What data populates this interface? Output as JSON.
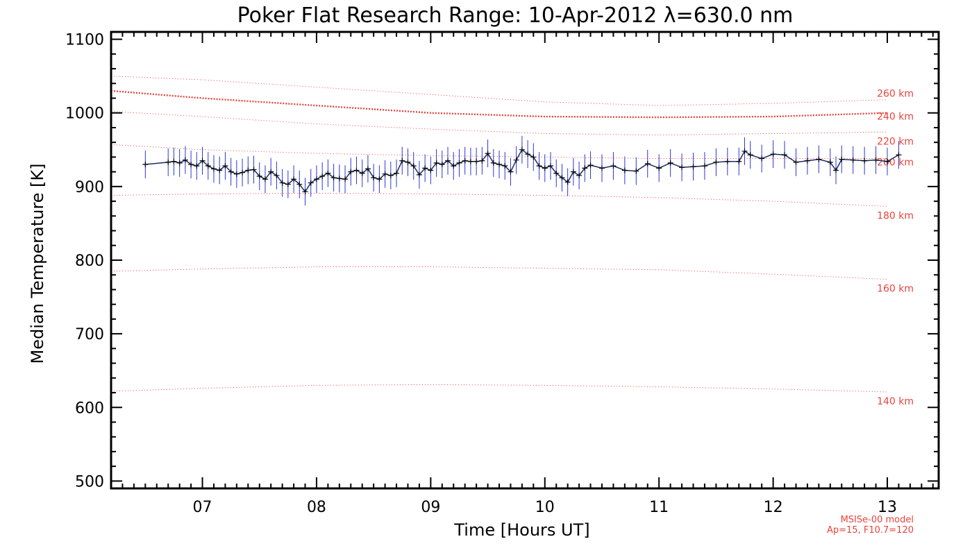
{
  "chart_data": {
    "type": "line",
    "title": "Poker Flat Research Range: 10-Apr-2012 λ=630.0 nm",
    "xlabel": "Time [Hours UT]",
    "ylabel": "Median Temperature [K]",
    "xlim": [
      6.2,
      13.45
    ],
    "ylim": [
      490,
      1110
    ],
    "xticks": [
      7,
      8,
      9,
      10,
      11,
      12,
      13
    ],
    "xtick_labels": [
      "07",
      "08",
      "09",
      "10",
      "11",
      "12",
      "13"
    ],
    "yticks": [
      500,
      600,
      700,
      800,
      900,
      1000,
      1100
    ],
    "ytick_labels": [
      "500",
      "600",
      "700",
      "800",
      "900",
      "1000",
      "1100"
    ],
    "grid": false,
    "model_note": [
      "MSISe-00 model",
      "Ap=15, F10.7=120"
    ],
    "colors": {
      "measurement": "#1a2a6c",
      "error_bar": "#2b35d8",
      "model": "#e8433b"
    },
    "series": [
      {
        "x": [
          6.5,
          6.7,
          6.75,
          6.8,
          6.85,
          6.9,
          6.95,
          7.0,
          7.05,
          7.1,
          7.15,
          7.2,
          7.25,
          7.3,
          7.35,
          7.4,
          7.45,
          7.5,
          7.55,
          7.6,
          7.65,
          7.7,
          7.75,
          7.8,
          7.85,
          7.9,
          7.95,
          8.0,
          8.05,
          8.1,
          8.15,
          8.2,
          8.25,
          8.3,
          8.35,
          8.4,
          8.45,
          8.5,
          8.55,
          8.6,
          8.65,
          8.7,
          8.75,
          8.8,
          8.85,
          8.9,
          8.95,
          9.0,
          9.05,
          9.1,
          9.15,
          9.2,
          9.25,
          9.3,
          9.35,
          9.4,
          9.45,
          9.5,
          9.55,
          9.6,
          9.65,
          9.7,
          9.75,
          9.8,
          9.85,
          9.9,
          9.95,
          10.0,
          10.05,
          10.1,
          10.15,
          10.2,
          10.25,
          10.3,
          10.35,
          10.4,
          10.5,
          10.6,
          10.7,
          10.8,
          10.9,
          11.0,
          11.1,
          11.2,
          11.3,
          11.4,
          11.5,
          11.6,
          11.7,
          11.75,
          11.8,
          11.9,
          12.0,
          12.1,
          12.2,
          12.3,
          12.4,
          12.5,
          12.55,
          12.6,
          12.7,
          12.8,
          12.9,
          13.0,
          13.1
        ],
        "values": [
          930,
          933,
          934,
          932,
          936,
          930,
          928,
          935,
          928,
          924,
          922,
          928,
          920,
          917,
          919,
          922,
          923,
          914,
          910,
          920,
          915,
          905,
          903,
          910,
          903,
          893,
          905,
          910,
          914,
          918,
          912,
          911,
          910,
          920,
          922,
          918,
          924,
          912,
          910,
          917,
          915,
          918,
          935,
          933,
          928,
          916,
          925,
          922,
          932,
          930,
          935,
          928,
          932,
          935,
          934,
          934,
          935,
          945,
          932,
          930,
          928,
          920,
          936,
          950,
          944,
          940,
          928,
          925,
          928,
          918,
          912,
          906,
          920,
          915,
          925,
          929,
          925,
          928,
          922,
          921,
          931,
          925,
          932,
          926,
          927,
          928,
          933,
          934,
          934,
          948,
          943,
          938,
          944,
          943,
          933,
          935,
          937,
          933,
          922,
          937,
          936,
          935,
          936,
          934,
          943
        ]
      },
      {
        "name": "260 km",
        "x": [
          6.2,
          7.0,
          8.0,
          9.0,
          10.0,
          11.0,
          12.0,
          13.0
        ],
        "values": [
          1050,
          1045,
          1035,
          1025,
          1015,
          1010,
          1013,
          1018
        ]
      },
      {
        "name": "240 km",
        "x": [
          6.2,
          7.0,
          8.0,
          9.0,
          10.0,
          11.0,
          12.0,
          13.0
        ],
        "values": [
          1030,
          1020,
          1010,
          1000,
          995,
          994,
          995,
          1000
        ]
      },
      {
        "name": "220 km",
        "x": [
          6.2,
          7.0,
          8.0,
          9.0,
          10.0,
          11.0,
          12.0,
          13.0
        ],
        "values": [
          1002,
          995,
          985,
          978,
          972,
          970,
          972,
          974
        ]
      },
      {
        "name": "200 km",
        "x": [
          6.2,
          7.0,
          8.0,
          9.0,
          10.0,
          11.0,
          12.0,
          13.0
        ],
        "values": [
          957,
          950,
          945,
          942,
          940,
          938,
          938,
          938
        ]
      },
      {
        "name": "180 km",
        "x": [
          6.2,
          7.0,
          8.0,
          9.0,
          10.0,
          11.0,
          12.0,
          13.0
        ],
        "values": [
          888,
          890,
          891,
          890,
          888,
          885,
          880,
          873
        ]
      },
      {
        "name": "160 km",
        "x": [
          6.2,
          7.0,
          8.0,
          9.0,
          10.0,
          11.0,
          12.0,
          13.0
        ],
        "values": [
          785,
          788,
          791,
          791,
          789,
          787,
          781,
          774
        ]
      },
      {
        "name": "140 km",
        "x": [
          6.2,
          7.0,
          8.0,
          9.0,
          10.0,
          11.0,
          12.0,
          13.0
        ],
        "values": [
          622,
          626,
          630,
          631,
          630,
          628,
          625,
          621
        ]
      }
    ]
  }
}
